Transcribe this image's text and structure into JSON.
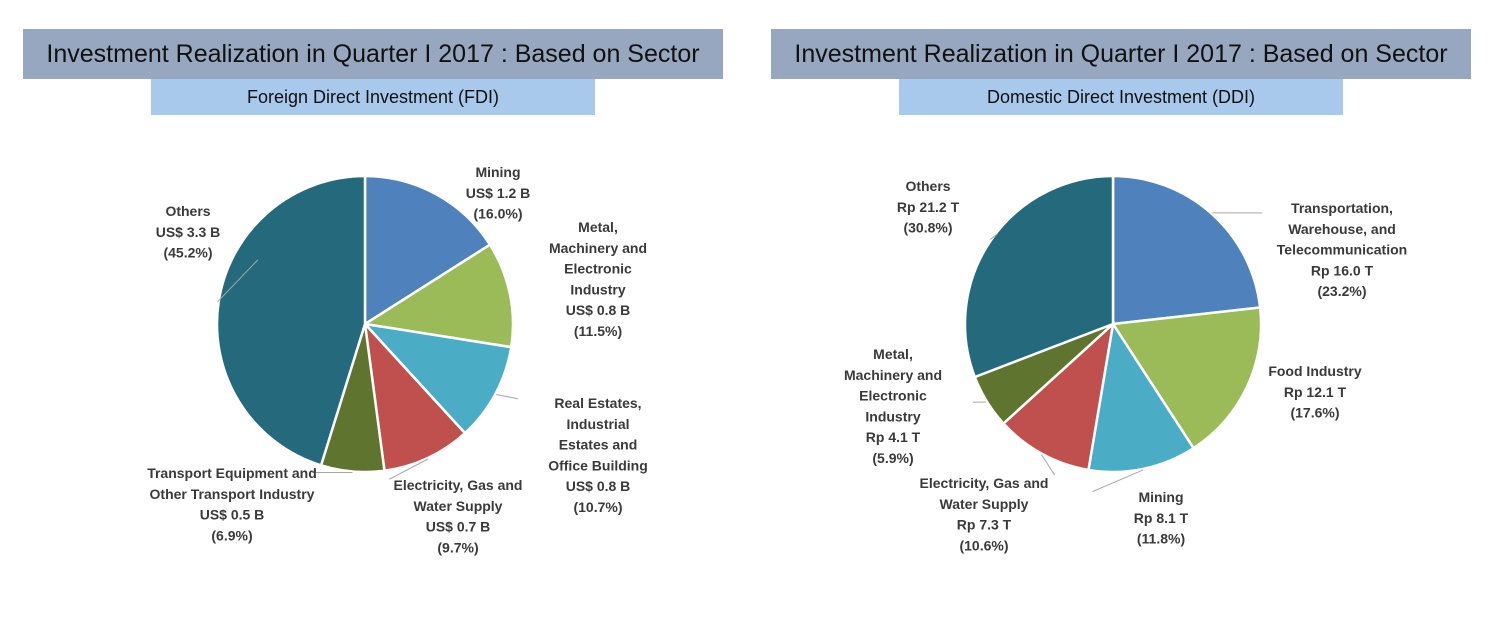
{
  "chart_data": [
    {
      "type": "pie",
      "title": "Investment Realization in Quarter I 2017 : Based on Sector",
      "subtitle": "Foreign Direct Investment (FDI)",
      "unit": "US$ B",
      "slices": [
        {
          "name": "Mining",
          "label_lines": [
            "Mining",
            "US$ 1.2 B",
            "(16.0%)"
          ],
          "value": 1.2,
          "percent": 16.0,
          "color": "#4f81bd"
        },
        {
          "name": "Metal, Machinery and Electronic Industry",
          "label_lines": [
            "Metal,",
            "Machinery and",
            "Electronic",
            "Industry",
            "US$ 0.8 B",
            "(11.5%)"
          ],
          "value": 0.8,
          "percent": 11.5,
          "color": "#9bbb59"
        },
        {
          "name": "Real Estates, Industrial Estates and Office Building",
          "label_lines": [
            "Real Estates,",
            "Industrial",
            "Estates and",
            "Office Building",
            "US$ 0.8 B",
            "(10.7%)"
          ],
          "value": 0.8,
          "percent": 10.7,
          "color": "#4bacc6"
        },
        {
          "name": "Electricity, Gas and Water Supply",
          "label_lines": [
            "Electricity, Gas and",
            "Water Supply",
            "US$ 0.7 B",
            "(9.7%)"
          ],
          "value": 0.7,
          "percent": 9.7,
          "color": "#c0504d"
        },
        {
          "name": "Transport Equipment and Other Transport Industry",
          "label_lines": [
            "Transport Equipment and",
            "Other Transport Industry",
            "US$ 0.5 B",
            "(6.9%)"
          ],
          "value": 0.5,
          "percent": 6.9,
          "color": "#5f752f"
        },
        {
          "name": "Others",
          "label_lines": [
            "Others",
            "US$ 3.3 B",
            "(45.2%)"
          ],
          "value": 3.3,
          "percent": 45.2,
          "color": "#256a7c"
        }
      ]
    },
    {
      "type": "pie",
      "title": "Investment Realization in Quarter I 2017 : Based on Sector",
      "subtitle": "Domestic Direct Investment (DDI)",
      "unit": "Rp T",
      "slices": [
        {
          "name": "Transportation, Warehouse, and Telecommunication",
          "label_lines": [
            "Transportation,",
            "Warehouse, and",
            "Telecommunication",
            "Rp 16.0 T",
            "(23.2%)"
          ],
          "value": 16.0,
          "percent": 23.2,
          "color": "#4f81bd"
        },
        {
          "name": "Food Industry",
          "label_lines": [
            "Food Industry",
            "Rp 12.1 T",
            "(17.6%)"
          ],
          "value": 12.1,
          "percent": 17.6,
          "color": "#9bbb59"
        },
        {
          "name": "Mining",
          "label_lines": [
            "Mining",
            "Rp 8.1 T",
            "(11.8%)"
          ],
          "value": 8.1,
          "percent": 11.8,
          "color": "#4bacc6"
        },
        {
          "name": "Electricity, Gas and Water Supply",
          "label_lines": [
            "Electricity, Gas and",
            "Water Supply",
            "Rp 7.3 T",
            "(10.6%)"
          ],
          "value": 7.3,
          "percent": 10.6,
          "color": "#c0504d"
        },
        {
          "name": "Metal, Machinery and Electronic Industry",
          "label_lines": [
            "Metal,",
            "Machinery and",
            "Electronic",
            "Industry",
            "Rp 4.1 T",
            "(5.9%)"
          ],
          "value": 4.1,
          "percent": 5.9,
          "color": "#5f752f"
        },
        {
          "name": "Others",
          "label_lines": [
            "Others",
            "Rp 21.2 T",
            "(30.8%)"
          ],
          "value": 21.2,
          "percent": 30.8,
          "color": "#256a7c"
        }
      ]
    }
  ]
}
